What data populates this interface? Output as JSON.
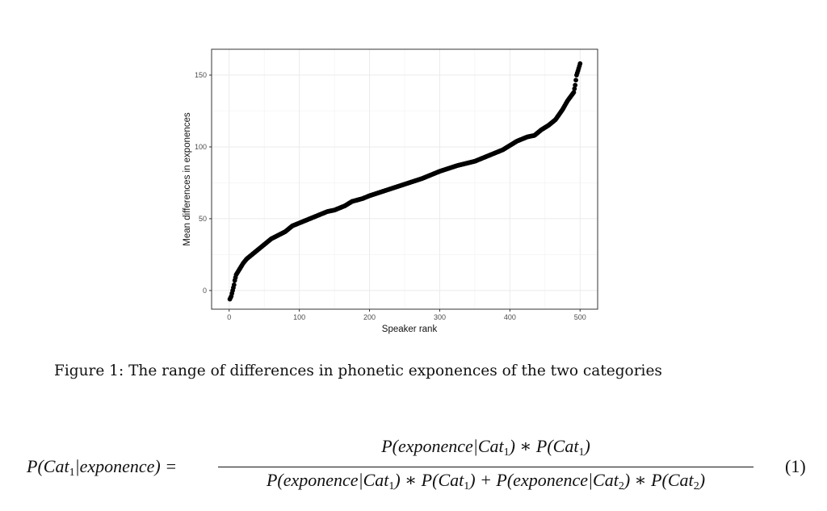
{
  "chart_data": {
    "type": "scatter",
    "title": "",
    "xlabel": "Speaker rank",
    "ylabel": "Mean differences in exponences",
    "xlim": [
      -25,
      525
    ],
    "ylim": [
      -13,
      168
    ],
    "xticks": [
      "0",
      "100",
      "200",
      "300",
      "400",
      "500"
    ],
    "yticks": [
      "0",
      "50",
      "100",
      "150"
    ],
    "grid": true,
    "n_points": 500,
    "curve_points": [
      [
        1,
        -6
      ],
      [
        3,
        -4
      ],
      [
        5,
        0
      ],
      [
        7,
        4
      ],
      [
        8,
        7
      ],
      [
        10,
        11
      ],
      [
        15,
        15
      ],
      [
        20,
        19
      ],
      [
        25,
        22
      ],
      [
        30,
        24
      ],
      [
        40,
        28
      ],
      [
        50,
        32
      ],
      [
        60,
        36
      ],
      [
        70,
        38.5
      ],
      [
        80,
        41
      ],
      [
        90,
        45
      ],
      [
        100,
        47
      ],
      [
        115,
        50
      ],
      [
        125,
        52
      ],
      [
        140,
        55
      ],
      [
        150,
        56
      ],
      [
        165,
        59
      ],
      [
        175,
        62
      ],
      [
        190,
        64
      ],
      [
        200,
        66
      ],
      [
        225,
        70
      ],
      [
        250,
        74
      ],
      [
        275,
        78
      ],
      [
        300,
        83
      ],
      [
        325,
        87
      ],
      [
        350,
        90
      ],
      [
        375,
        95
      ],
      [
        390,
        98
      ],
      [
        400,
        101
      ],
      [
        410,
        104
      ],
      [
        425,
        107
      ],
      [
        435,
        108
      ],
      [
        445,
        112
      ],
      [
        455,
        115
      ],
      [
        465,
        119
      ],
      [
        475,
        126
      ],
      [
        482,
        132
      ],
      [
        488,
        136
      ],
      [
        491,
        138
      ],
      [
        493,
        143
      ],
      [
        495,
        150
      ],
      [
        497,
        153
      ],
      [
        500,
        158
      ]
    ]
  },
  "caption": "Figure 1: The range of differences in phonetic exponences of the two categories",
  "equation": {
    "lhs": [
      {
        "t": "P(Cat"
      },
      {
        "s": "1"
      },
      {
        "t": "|exponence) ="
      }
    ],
    "numerator": [
      {
        "t": "P(exponence|Cat"
      },
      {
        "s": "1"
      },
      {
        "t": ") ∗ P(Cat"
      },
      {
        "s": "1"
      },
      {
        "t": ")"
      }
    ],
    "denominator": [
      {
        "t": "P(exponence|Cat"
      },
      {
        "s": "1"
      },
      {
        "t": ") ∗ P(Cat"
      },
      {
        "s": "1"
      },
      {
        "t": ") + P(exponence|Cat"
      },
      {
        "s": "2"
      },
      {
        "t": ") ∗ P(Cat"
      },
      {
        "s": "2"
      },
      {
        "t": ")"
      }
    ],
    "number": "(1)"
  }
}
